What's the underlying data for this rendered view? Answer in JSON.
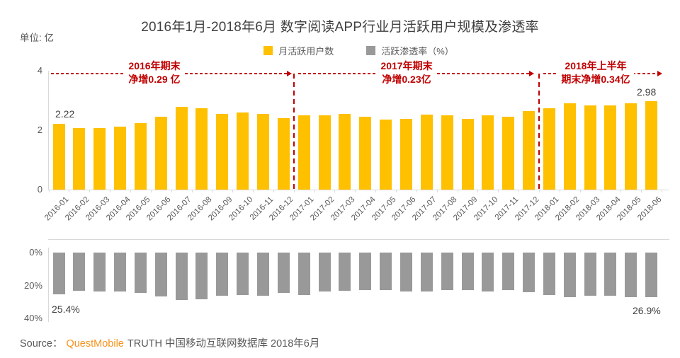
{
  "title": "2016年1月-2018年6月 数字阅读APP行业月活跃用户规模及渗透率",
  "unit_label": "单位: 亿",
  "legend": {
    "items": [
      {
        "label": "月活跃用户数",
        "color": "#FFC000"
      },
      {
        "label": "活跃渗透率（%）",
        "color": "#999999"
      }
    ]
  },
  "annotations": [
    {
      "line1": "2016年期末",
      "line2": "净增0.29 亿"
    },
    {
      "line1": "2017年期末",
      "line2": "净增0.23亿"
    },
    {
      "line1": "2018年上半年",
      "line2": "期末净增0.34亿"
    }
  ],
  "colors": {
    "bar_yellow": "#FFC000",
    "bar_gray": "#999999",
    "annotation_red": "#C00000",
    "axis_gray": "#D9D9D9",
    "axis_text": "#595959",
    "label_text": "#404040",
    "source_orange": "#F7941E"
  },
  "source": {
    "prefix": "Source：",
    "brand": "QuestMobile",
    "suffix": "TRUTH 中国移动互联网数据库 2018年6月"
  },
  "chart_data": [
    {
      "type": "bar",
      "name": "monthly-active-users",
      "series_label": "月活跃用户数",
      "unit": "亿",
      "categories": [
        "2016-01",
        "2016-02",
        "2016-03",
        "2016-04",
        "2016-05",
        "2016-06",
        "2016-07",
        "2016-08",
        "2016-09",
        "2016-10",
        "2016-11",
        "2016-12",
        "2017-01",
        "2017-02",
        "2017-03",
        "2017-04",
        "2017-05",
        "2017-06",
        "2017-07",
        "2017-08",
        "2017-09",
        "2017-10",
        "2017-11",
        "2017-12",
        "2018-01",
        "2018-02",
        "2018-03",
        "2018-04",
        "2018-05",
        "2018-06"
      ],
      "values": [
        2.22,
        2.08,
        2.08,
        2.11,
        2.23,
        2.45,
        2.78,
        2.74,
        2.54,
        2.6,
        2.54,
        2.41,
        2.51,
        2.49,
        2.55,
        2.46,
        2.36,
        2.39,
        2.52,
        2.51,
        2.38,
        2.49,
        2.45,
        2.64,
        2.74,
        2.9,
        2.84,
        2.84,
        2.9,
        2.98
      ],
      "ylim": [
        0,
        4
      ],
      "yticks": [
        4,
        2,
        0
      ],
      "ytick_labels": [
        "4",
        "2",
        "0"
      ],
      "grid": false,
      "legend_position": "top",
      "first_point_label": "2.22",
      "last_point_label": "2.98"
    },
    {
      "type": "bar",
      "name": "penetration-rate",
      "series_label": "活跃渗透率（%）",
      "unit": "%",
      "inverted_axis": true,
      "categories": [
        "2016-01",
        "2016-02",
        "2016-03",
        "2016-04",
        "2016-05",
        "2016-06",
        "2016-07",
        "2016-08",
        "2016-09",
        "2016-10",
        "2016-11",
        "2016-12",
        "2017-01",
        "2017-02",
        "2017-03",
        "2017-04",
        "2017-05",
        "2017-06",
        "2017-07",
        "2017-08",
        "2017-09",
        "2017-10",
        "2017-11",
        "2017-12",
        "2018-01",
        "2018-02",
        "2018-03",
        "2018-04",
        "2018-05",
        "2018-06"
      ],
      "values": [
        25.4,
        23.2,
        23.6,
        23.6,
        24.5,
        26.7,
        29.0,
        28.5,
        26.3,
        26.0,
        26.3,
        24.6,
        25.6,
        23.7,
        23.3,
        23.0,
        23.0,
        23.6,
        23.6,
        23.0,
        23.0,
        23.6,
        23.0,
        24.3,
        25.6,
        27.0,
        26.4,
        26.4,
        27.0,
        26.9
      ],
      "ylim": [
        0,
        40
      ],
      "yticks": [
        0,
        20,
        40
      ],
      "ytick_labels": [
        "0%",
        "20%",
        "40%"
      ],
      "grid": false,
      "first_point_label": "25.4%",
      "last_point_label": "26.9%"
    }
  ]
}
